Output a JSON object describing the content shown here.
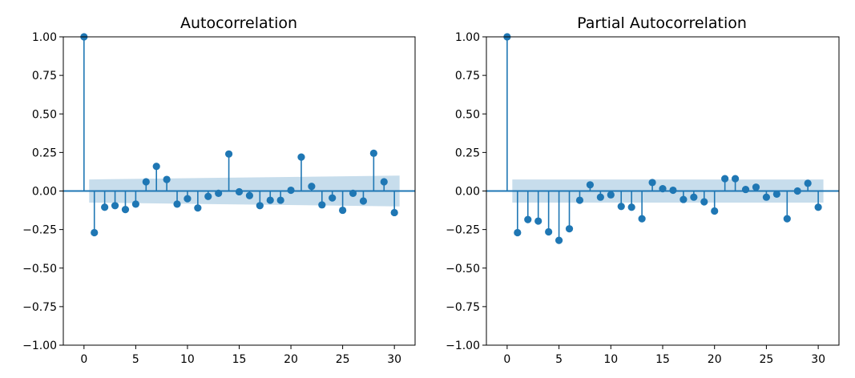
{
  "colors": {
    "stem": "#1f77b4",
    "marker": "#1f77b4",
    "confidence_band": "#1f77b4",
    "axes": "#000000",
    "background": "#ffffff"
  },
  "chart_data": [
    {
      "type": "stem",
      "title": "Autocorrelation",
      "xlabel": "",
      "ylabel": "",
      "xlim": [
        -2,
        32
      ],
      "ylim": [
        -1,
        1
      ],
      "grid": false,
      "xticks": [
        0,
        5,
        10,
        15,
        20,
        25,
        30
      ],
      "yticks": [
        -1.0,
        -0.75,
        -0.5,
        -0.25,
        0.0,
        0.25,
        0.5,
        0.75,
        1.0
      ],
      "ytick_labels": [
        "−1.00",
        "−0.75",
        "−0.50",
        "−0.25",
        "0.00",
        "0.25",
        "0.50",
        "0.75",
        "1.00"
      ],
      "x": [
        0,
        1,
        2,
        3,
        4,
        5,
        6,
        7,
        8,
        9,
        10,
        11,
        12,
        13,
        14,
        15,
        16,
        17,
        18,
        19,
        20,
        21,
        22,
        23,
        24,
        25,
        26,
        27,
        28,
        29,
        30
      ],
      "values": [
        1.0,
        -0.27,
        -0.105,
        -0.095,
        -0.12,
        -0.085,
        0.06,
        0.16,
        0.075,
        -0.085,
        -0.05,
        -0.11,
        -0.035,
        -0.015,
        0.24,
        -0.005,
        -0.03,
        -0.095,
        -0.06,
        -0.06,
        0.005,
        0.22,
        0.03,
        -0.09,
        -0.045,
        -0.125,
        -0.015,
        -0.065,
        0.245,
        0.06,
        -0.14
      ],
      "confidence_band": {
        "x": [
          0.5,
          30.5
        ],
        "upper": [
          0.075,
          0.1
        ],
        "lower": [
          -0.075,
          -0.1
        ]
      }
    },
    {
      "type": "stem",
      "title": "Partial Autocorrelation",
      "xlabel": "",
      "ylabel": "",
      "xlim": [
        -2,
        32
      ],
      "ylim": [
        -1,
        1
      ],
      "grid": false,
      "xticks": [
        0,
        5,
        10,
        15,
        20,
        25,
        30
      ],
      "yticks": [
        -1.0,
        -0.75,
        -0.5,
        -0.25,
        0.0,
        0.25,
        0.5,
        0.75,
        1.0
      ],
      "ytick_labels": [
        "−1.00",
        "−0.75",
        "−0.50",
        "−0.25",
        "0.00",
        "0.25",
        "0.50",
        "0.75",
        "1.00"
      ],
      "x": [
        0,
        1,
        2,
        3,
        4,
        5,
        6,
        7,
        8,
        9,
        10,
        11,
        12,
        13,
        14,
        15,
        16,
        17,
        18,
        19,
        20,
        21,
        22,
        23,
        24,
        25,
        26,
        27,
        28,
        29,
        30
      ],
      "values": [
        1.0,
        -0.27,
        -0.185,
        -0.195,
        -0.265,
        -0.32,
        -0.245,
        -0.06,
        0.04,
        -0.04,
        -0.025,
        -0.1,
        -0.105,
        -0.18,
        0.055,
        0.015,
        0.005,
        -0.055,
        -0.04,
        -0.07,
        -0.13,
        0.08,
        0.08,
        0.01,
        0.025,
        -0.04,
        -0.02,
        -0.18,
        0.0,
        0.05,
        -0.105
      ],
      "confidence_band": {
        "x": [
          0.5,
          30.5
        ],
        "upper": [
          0.075,
          0.075
        ],
        "lower": [
          -0.075,
          -0.075
        ]
      }
    }
  ]
}
